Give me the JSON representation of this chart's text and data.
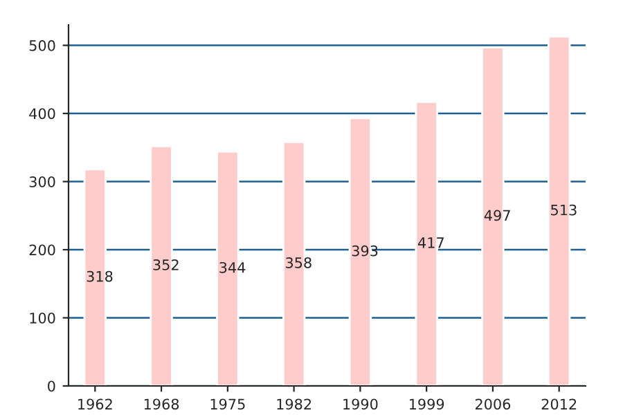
{
  "chart_data": {
    "type": "bar",
    "categories": [
      "1962",
      "1968",
      "1975",
      "1982",
      "1990",
      "1999",
      "2006",
      "2012"
    ],
    "values": [
      318,
      352,
      344,
      358,
      393,
      417,
      497,
      513
    ],
    "color": "#ffcccc",
    "ylim": [
      0,
      530
    ],
    "yticks": [
      0,
      100,
      200,
      300,
      400,
      500
    ],
    "grid": "y",
    "data_labels": true
  }
}
